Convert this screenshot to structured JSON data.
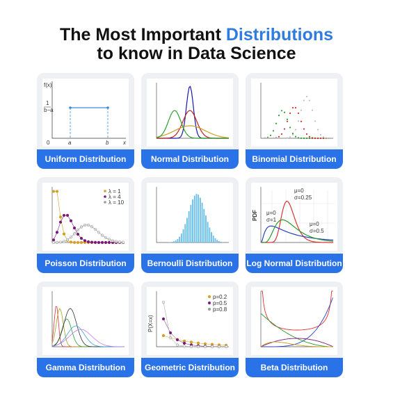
{
  "header": {
    "title_part1": "The Most Important ",
    "title_highlight": "Distributions",
    "title_line2": "to know in Data Science"
  },
  "cards": [
    {
      "label": "Uniform Distribution",
      "texts": [
        "f(x)",
        "1",
        "b−a",
        "0",
        "a",
        "b",
        "x"
      ]
    },
    {
      "label": "Normal Distribution"
    },
    {
      "label": "Binomial Distribution"
    },
    {
      "label": "Poisson Distribution",
      "texts": [
        "λ = 1",
        "λ = 4",
        "λ = 10"
      ]
    },
    {
      "label": "Bernoulli Distribution"
    },
    {
      "label": "Log Normal Distribution",
      "texts": [
        "μ=0",
        "σ=0.25",
        "μ=0",
        "σ=1",
        "μ=0",
        "σ=0.5",
        "PDF"
      ]
    },
    {
      "label": "Gamma Distribution"
    },
    {
      "label": "Geometric Distribution",
      "texts": [
        "p=0.2",
        "p=0.5",
        "p=0.8",
        "P(X=x)"
      ]
    },
    {
      "label": "Beta Distribution"
    }
  ]
}
